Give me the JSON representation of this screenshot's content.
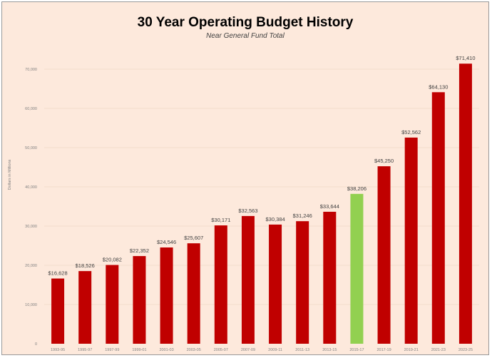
{
  "chart_data": {
    "type": "bar",
    "title": "30 Year Operating Budget History",
    "subtitle": "Near General Fund Total",
    "ylabel": "Dollars in Millions",
    "xlabel": "",
    "ylim": [
      0,
      70000
    ],
    "yticks": [
      0,
      10000,
      20000,
      30000,
      40000,
      50000,
      60000,
      70000
    ],
    "ytick_labels": [
      "0",
      "10,000",
      "20,000",
      "30,000",
      "40,000",
      "50,000",
      "60,000",
      "70,000"
    ],
    "grid": true,
    "categories": [
      "1993-95",
      "1995-97",
      "1997-99",
      "1999-01",
      "2001-03",
      "2003-05",
      "2005-07",
      "2007-09",
      "2009-11",
      "2011-13",
      "2013-15",
      "2015-17",
      "2017-19",
      "2019-21",
      "2021-23",
      "2023-25"
    ],
    "values": [
      16628,
      18526,
      20082,
      22352,
      24546,
      25607,
      30171,
      32563,
      30384,
      31246,
      33644,
      38206,
      45250,
      52562,
      64130,
      71410
    ],
    "data_labels": [
      "$16,628",
      "$18,526",
      "$20,082",
      "$22,352",
      "$24,546",
      "$25,607",
      "$30,171",
      "$32,563",
      "$30,384",
      "$31,246",
      "$33,644",
      "$38,206",
      "$45,250",
      "$52,562",
      "$64,130",
      "$71,410"
    ],
    "highlight_index": 11,
    "colors": {
      "bar": "#c00000",
      "highlight": "#92d050",
      "background": "#fde9dc",
      "grid": "#f0d8c8"
    }
  }
}
